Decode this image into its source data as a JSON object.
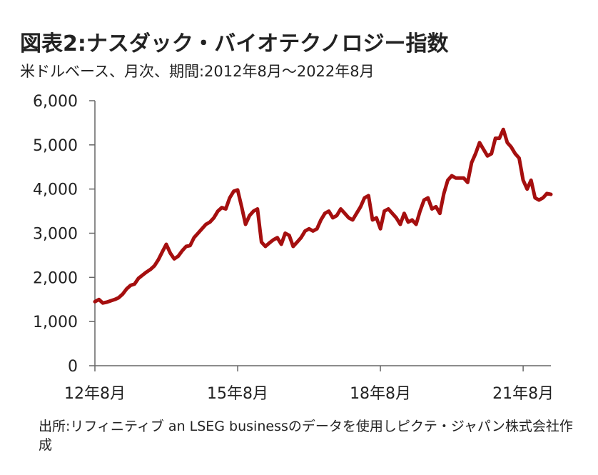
{
  "title": "図表2:ナスダック・バイオテクノロジー指数",
  "subtitle": "米ドルベース、月次、期間:2012年8月～2022年8月",
  "source": "出所:リフィニティブ an LSEG businessのデータを使用しピクテ・ジャパン株式会社作成",
  "colors": {
    "line": "#a50f0f",
    "axis": "#666666"
  },
  "chart_data": {
    "type": "line",
    "title": "図表2:ナスダック・バイオテクノロジー指数",
    "xlabel": "",
    "ylabel": "",
    "ylim": [
      0,
      6000
    ],
    "yticks": [
      "0",
      "1,000",
      "2,000",
      "3,000",
      "4,000",
      "5,000",
      "6,000"
    ],
    "xticks": [
      "12年8月",
      "15年8月",
      "18年8月",
      "21年8月"
    ],
    "x_start": "2012-08",
    "x_end": "2022-08",
    "grid": false,
    "series": [
      {
        "values": [
          1450,
          1500,
          1420,
          1440,
          1470,
          1500,
          1540,
          1620,
          1740,
          1820,
          1850,
          1980,
          2050,
          2120,
          2180,
          2260,
          2400,
          2580,
          2750,
          2550,
          2420,
          2480,
          2600,
          2700,
          2720,
          2900,
          3000,
          3100,
          3200,
          3250,
          3350,
          3500,
          3580,
          3550,
          3800,
          3950,
          3980,
          3600,
          3200,
          3400,
          3500,
          3550,
          2800,
          2700,
          2780,
          2850,
          2900,
          2750,
          3000,
          2950,
          2700,
          2800,
          2900,
          3050,
          3100,
          3050,
          3100,
          3300,
          3450,
          3500,
          3350,
          3400,
          3550,
          3450,
          3350,
          3300,
          3450,
          3600,
          3800,
          3850,
          3300,
          3350,
          3100,
          3500,
          3550,
          3450,
          3350,
          3200,
          3450,
          3250,
          3300,
          3200,
          3500,
          3750,
          3800,
          3550,
          3600,
          3450,
          3900,
          4200,
          4300,
          4250,
          4250,
          4250,
          4150,
          4600,
          4800,
          5050,
          4900,
          4750,
          4800,
          5150,
          5150,
          5350,
          5050,
          4950,
          4800,
          4700,
          4200,
          4000,
          4200,
          3800,
          3750,
          3800,
          3900,
          3880
        ]
      }
    ]
  }
}
